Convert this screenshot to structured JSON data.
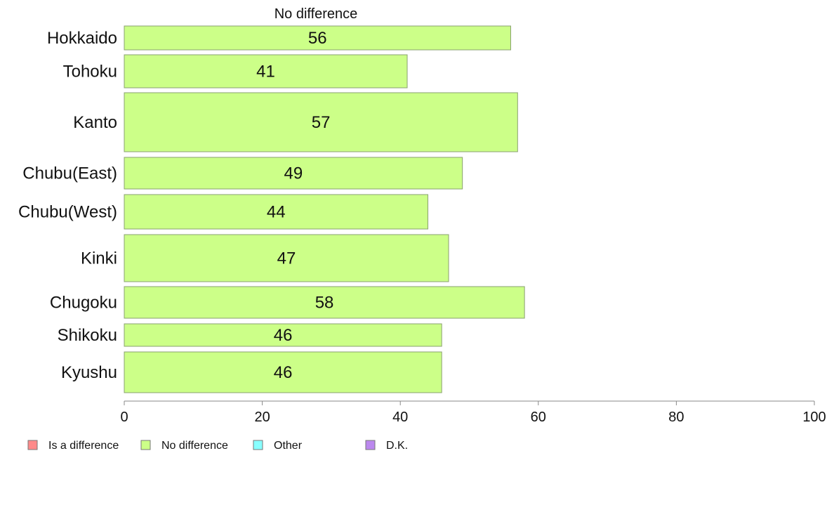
{
  "chart_data": {
    "type": "bar",
    "orientation": "horizontal",
    "title": "No difference",
    "categories": [
      "Hokkaido",
      "Tohoku",
      "Kanto",
      "Chubu(East)",
      "Chubu(West)",
      "Kinki",
      "Chugoku",
      "Shikoku",
      "Kyushu"
    ],
    "series": [
      {
        "name": "No difference",
        "values": [
          56,
          41,
          57,
          49,
          44,
          47,
          58,
          46,
          46
        ],
        "color": "#ccff88"
      }
    ],
    "data_labels": [
      "56",
      "41",
      "57",
      "49",
      "44",
      "47",
      "58",
      "46",
      "46"
    ],
    "xlim": [
      0,
      100
    ],
    "x_ticks": [
      0,
      20,
      40,
      60,
      80,
      100
    ],
    "x_tick_labels": [
      "0",
      "20",
      "40",
      "60",
      "80",
      "100"
    ],
    "grid": false,
    "legend_position": "bottom-left",
    "legend": [
      {
        "label": "Is a difference",
        "color": "#ff8a8a"
      },
      {
        "label": "No difference",
        "color": "#ccff88"
      },
      {
        "label": "Other",
        "color": "#88ffff"
      },
      {
        "label": "D.K.",
        "color": "#bb88ee"
      }
    ]
  }
}
